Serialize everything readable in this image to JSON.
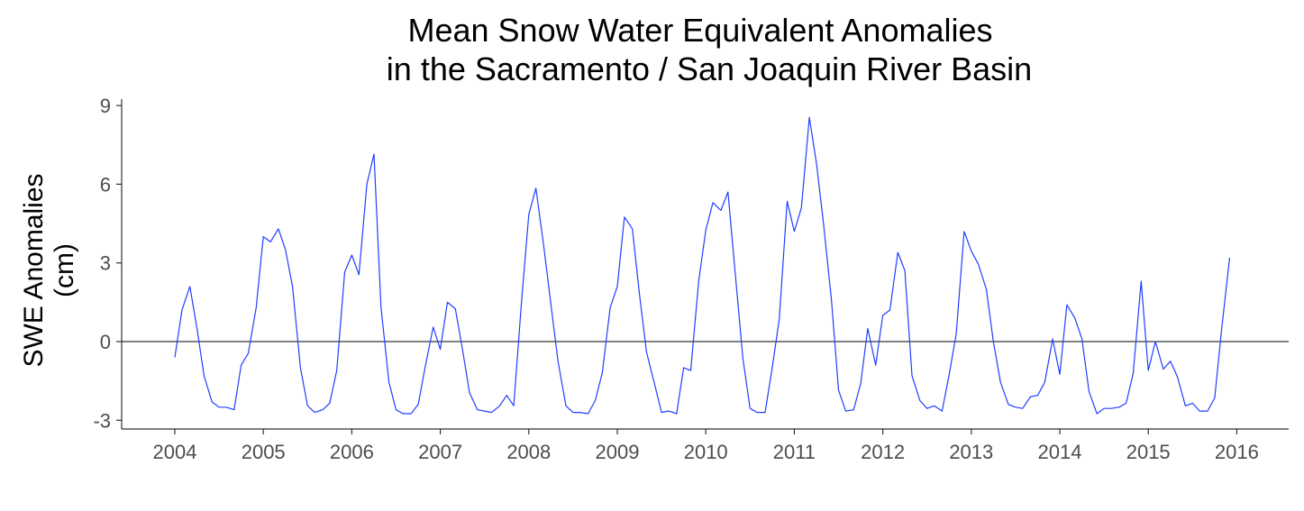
{
  "chart_data": {
    "type": "line",
    "title": [
      "Mean Snow Water Equivalent Anomalies",
      "in the Sacramento / San Joaquin River Basin"
    ],
    "ylabel": [
      "SWE Anomalies",
      "(cm)"
    ],
    "xlabel": "",
    "x_ticks": [
      "2004",
      "2005",
      "2006",
      "2007",
      "2008",
      "2009",
      "2010",
      "2011",
      "2012",
      "2013",
      "2014",
      "2015",
      "2016"
    ],
    "y_ticks": [
      "-3",
      "0",
      "3",
      "6",
      "9"
    ],
    "xlim": [
      2003.6,
      2016.3
    ],
    "ylim": [
      -3.3,
      9.2
    ],
    "hline": 0,
    "grid": false,
    "legend": "none",
    "series": [
      {
        "color": "#1f3fff",
        "points": [
          [
            2004.0,
            -0.6
          ],
          [
            2004.08,
            1.2
          ],
          [
            2004.17,
            2.1
          ],
          [
            2004.25,
            0.5
          ],
          [
            2004.33,
            -1.3
          ],
          [
            2004.42,
            -2.3
          ],
          [
            2004.5,
            -2.5
          ],
          [
            2004.58,
            -2.5
          ],
          [
            2004.67,
            -2.6
          ],
          [
            2004.75,
            -0.9
          ],
          [
            2004.83,
            -0.45
          ],
          [
            2004.92,
            1.3
          ],
          [
            2005.0,
            4.0
          ],
          [
            2005.08,
            3.8
          ],
          [
            2005.17,
            4.3
          ],
          [
            2005.25,
            3.5
          ],
          [
            2005.33,
            2.1
          ],
          [
            2005.42,
            -1.0
          ],
          [
            2005.5,
            -2.45
          ],
          [
            2005.58,
            -2.7
          ],
          [
            2005.67,
            -2.6
          ],
          [
            2005.75,
            -2.35
          ],
          [
            2005.83,
            -1.1
          ],
          [
            2005.92,
            2.65
          ],
          [
            2006.0,
            3.3
          ],
          [
            2006.08,
            2.55
          ],
          [
            2006.17,
            6.0
          ],
          [
            2006.25,
            7.15
          ],
          [
            2006.33,
            1.3
          ],
          [
            2006.42,
            -1.55
          ],
          [
            2006.5,
            -2.6
          ],
          [
            2006.58,
            -2.75
          ],
          [
            2006.67,
            -2.75
          ],
          [
            2006.75,
            -2.4
          ],
          [
            2006.83,
            -0.95
          ],
          [
            2006.92,
            0.55
          ],
          [
            2007.0,
            -0.3
          ],
          [
            2007.08,
            1.5
          ],
          [
            2007.17,
            1.25
          ],
          [
            2007.25,
            -0.3
          ],
          [
            2007.33,
            -1.95
          ],
          [
            2007.42,
            -2.6
          ],
          [
            2007.5,
            -2.65
          ],
          [
            2007.58,
            -2.7
          ],
          [
            2007.67,
            -2.45
          ],
          [
            2007.75,
            -2.05
          ],
          [
            2007.83,
            -2.45
          ],
          [
            2007.92,
            1.6
          ],
          [
            2008.0,
            4.85
          ],
          [
            2008.08,
            5.85
          ],
          [
            2008.17,
            3.6
          ],
          [
            2008.25,
            1.4
          ],
          [
            2008.33,
            -0.75
          ],
          [
            2008.42,
            -2.45
          ],
          [
            2008.5,
            -2.7
          ],
          [
            2008.58,
            -2.7
          ],
          [
            2008.67,
            -2.75
          ],
          [
            2008.75,
            -2.25
          ],
          [
            2008.83,
            -1.2
          ],
          [
            2008.92,
            1.3
          ],
          [
            2009.0,
            2.1
          ],
          [
            2009.08,
            4.75
          ],
          [
            2009.17,
            4.3
          ],
          [
            2009.25,
            1.8
          ],
          [
            2009.33,
            -0.4
          ],
          [
            2009.42,
            -1.6
          ],
          [
            2009.5,
            -2.7
          ],
          [
            2009.58,
            -2.65
          ],
          [
            2009.67,
            -2.75
          ],
          [
            2009.75,
            -1.0
          ],
          [
            2009.83,
            -1.1
          ],
          [
            2009.92,
            2.3
          ],
          [
            2010.0,
            4.25
          ],
          [
            2010.08,
            5.3
          ],
          [
            2010.17,
            5.0
          ],
          [
            2010.25,
            5.7
          ],
          [
            2010.33,
            2.7
          ],
          [
            2010.42,
            -0.65
          ],
          [
            2010.5,
            -2.55
          ],
          [
            2010.58,
            -2.7
          ],
          [
            2010.67,
            -2.7
          ],
          [
            2010.75,
            -1.0
          ],
          [
            2010.83,
            0.85
          ],
          [
            2010.92,
            5.35
          ],
          [
            2011.0,
            4.2
          ],
          [
            2011.08,
            5.1
          ],
          [
            2011.17,
            8.55
          ],
          [
            2011.25,
            6.8
          ],
          [
            2011.33,
            4.5
          ],
          [
            2011.42,
            1.6
          ],
          [
            2011.5,
            -1.85
          ],
          [
            2011.58,
            -2.65
          ],
          [
            2011.67,
            -2.6
          ],
          [
            2011.75,
            -1.6
          ],
          [
            2011.83,
            0.5
          ],
          [
            2011.92,
            -0.9
          ],
          [
            2012.0,
            1.0
          ],
          [
            2012.08,
            1.2
          ],
          [
            2012.17,
            3.4
          ],
          [
            2012.25,
            2.7
          ],
          [
            2012.33,
            -1.3
          ],
          [
            2012.42,
            -2.25
          ],
          [
            2012.5,
            -2.55
          ],
          [
            2012.58,
            -2.45
          ],
          [
            2012.67,
            -2.65
          ],
          [
            2012.75,
            -1.25
          ],
          [
            2012.83,
            0.3
          ],
          [
            2012.92,
            4.2
          ],
          [
            2013.0,
            3.45
          ],
          [
            2013.08,
            2.95
          ],
          [
            2013.17,
            2.0
          ],
          [
            2013.25,
            0.0
          ],
          [
            2013.33,
            -1.55
          ],
          [
            2013.42,
            -2.4
          ],
          [
            2013.5,
            -2.5
          ],
          [
            2013.58,
            -2.55
          ],
          [
            2013.67,
            -2.1
          ],
          [
            2013.75,
            -2.05
          ],
          [
            2013.83,
            -1.55
          ],
          [
            2013.92,
            0.1
          ],
          [
            2014.0,
            -1.25
          ],
          [
            2014.08,
            1.4
          ],
          [
            2014.17,
            0.9
          ],
          [
            2014.25,
            0.1
          ],
          [
            2014.33,
            -1.9
          ],
          [
            2014.42,
            -2.75
          ],
          [
            2014.5,
            -2.55
          ],
          [
            2014.58,
            -2.55
          ],
          [
            2014.67,
            -2.5
          ],
          [
            2014.75,
            -2.35
          ],
          [
            2014.83,
            -1.2
          ],
          [
            2014.92,
            2.3
          ],
          [
            2015.0,
            -1.1
          ],
          [
            2015.08,
            0.0
          ],
          [
            2015.17,
            -1.05
          ],
          [
            2015.25,
            -0.75
          ],
          [
            2015.33,
            -1.35
          ],
          [
            2015.42,
            -2.45
          ],
          [
            2015.5,
            -2.35
          ],
          [
            2015.58,
            -2.65
          ],
          [
            2015.67,
            -2.65
          ],
          [
            2015.75,
            -2.15
          ],
          [
            2015.83,
            0.5
          ],
          [
            2015.92,
            3.2
          ]
        ]
      }
    ]
  }
}
